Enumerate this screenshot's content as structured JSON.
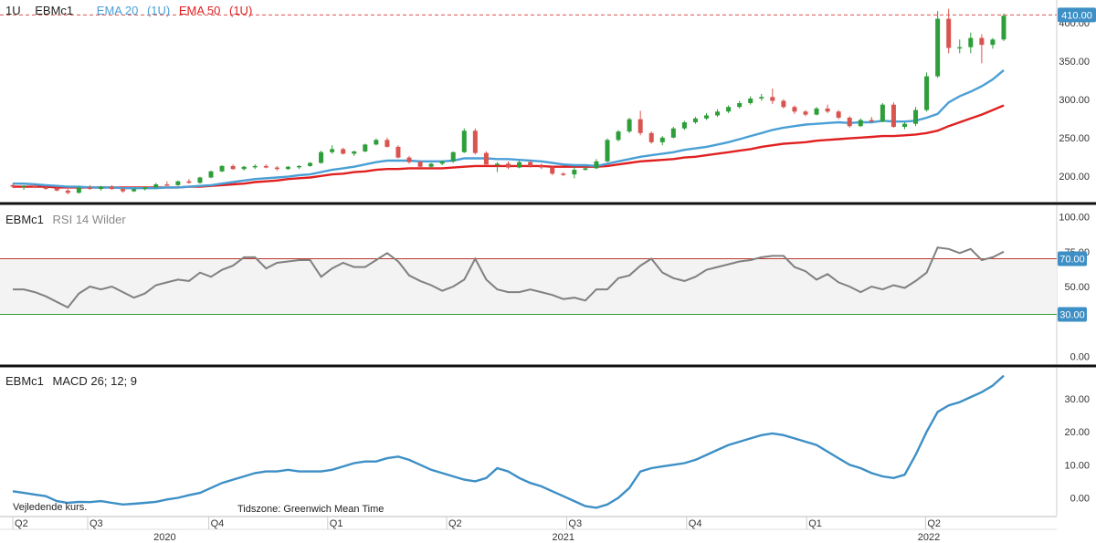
{
  "header": {
    "interval": "1U",
    "symbol": "EBMc1",
    "ema20_label": "EMA 20",
    "ema20_period": "(1U)",
    "ema50_label": "EMA 50",
    "ema50_period": "(1U)"
  },
  "rsi_panel": {
    "symbol": "EBMc1",
    "label": "RSI 14 Wilder"
  },
  "macd_panel": {
    "symbol": "EBMc1",
    "label": "MACD 26; 12; 9"
  },
  "footer": {
    "note": "Vejledende kurs.",
    "timezone": "Tidszone: Greenwich Mean Time"
  },
  "colors": {
    "up": "#2e9e3a",
    "down": "#d9534f",
    "ema20": "#4a9fd5",
    "ema50": "#e02020",
    "rsi_line": "#808080",
    "rsi_upper": "#c0392b",
    "rsi_lower": "#2ea043",
    "macd_line": "#3d8fc6",
    "price_tag": "#3d8fc6",
    "rsi_tag": "#3d8fc6"
  },
  "chart_data": [
    {
      "type": "candlestick",
      "title": "EBMc1",
      "ylim": [
        170,
        420
      ],
      "yticks": [
        200,
        250,
        300,
        350,
        400
      ],
      "ytick_labels": [
        "200.00",
        "250.00",
        "300.00",
        "350.00",
        "400.00"
      ],
      "last_price": 410,
      "last_price_label": "410.00",
      "xlim": [
        -0.5,
        90.5
      ],
      "candles": [
        {
          "o": 188,
          "h": 190,
          "l": 184,
          "c": 186
        },
        {
          "o": 186,
          "h": 188,
          "l": 182,
          "c": 187
        },
        {
          "o": 187,
          "h": 189,
          "l": 184,
          "c": 185
        },
        {
          "o": 185,
          "h": 187,
          "l": 182,
          "c": 184
        },
        {
          "o": 184,
          "h": 186,
          "l": 180,
          "c": 181
        },
        {
          "o": 181,
          "h": 183,
          "l": 176,
          "c": 178
        },
        {
          "o": 178,
          "h": 186,
          "l": 177,
          "c": 185
        },
        {
          "o": 185,
          "h": 188,
          "l": 182,
          "c": 183
        },
        {
          "o": 183,
          "h": 187,
          "l": 181,
          "c": 186
        },
        {
          "o": 186,
          "h": 188,
          "l": 182,
          "c": 183
        },
        {
          "o": 183,
          "h": 185,
          "l": 178,
          "c": 180
        },
        {
          "o": 180,
          "h": 184,
          "l": 179,
          "c": 183
        },
        {
          "o": 183,
          "h": 186,
          "l": 181,
          "c": 185
        },
        {
          "o": 185,
          "h": 191,
          "l": 184,
          "c": 189
        },
        {
          "o": 189,
          "h": 193,
          "l": 187,
          "c": 188
        },
        {
          "o": 188,
          "h": 194,
          "l": 187,
          "c": 193
        },
        {
          "o": 193,
          "h": 196,
          "l": 190,
          "c": 191
        },
        {
          "o": 191,
          "h": 199,
          "l": 190,
          "c": 198
        },
        {
          "o": 198,
          "h": 207,
          "l": 197,
          "c": 206
        },
        {
          "o": 206,
          "h": 214,
          "l": 205,
          "c": 213
        },
        {
          "o": 213,
          "h": 215,
          "l": 208,
          "c": 209
        },
        {
          "o": 209,
          "h": 213,
          "l": 207,
          "c": 212
        },
        {
          "o": 212,
          "h": 215,
          "l": 209,
          "c": 213
        },
        {
          "o": 213,
          "h": 215,
          "l": 210,
          "c": 211
        },
        {
          "o": 211,
          "h": 213,
          "l": 207,
          "c": 209
        },
        {
          "o": 209,
          "h": 213,
          "l": 208,
          "c": 212
        },
        {
          "o": 212,
          "h": 214,
          "l": 209,
          "c": 213
        },
        {
          "o": 213,
          "h": 218,
          "l": 212,
          "c": 217
        },
        {
          "o": 217,
          "h": 233,
          "l": 216,
          "c": 231
        },
        {
          "o": 231,
          "h": 240,
          "l": 229,
          "c": 235
        },
        {
          "o": 235,
          "h": 237,
          "l": 228,
          "c": 229
        },
        {
          "o": 229,
          "h": 233,
          "l": 226,
          "c": 232
        },
        {
          "o": 232,
          "h": 242,
          "l": 231,
          "c": 241
        },
        {
          "o": 241,
          "h": 249,
          "l": 240,
          "c": 247
        },
        {
          "o": 247,
          "h": 250,
          "l": 237,
          "c": 238
        },
        {
          "o": 238,
          "h": 240,
          "l": 223,
          "c": 224
        },
        {
          "o": 224,
          "h": 226,
          "l": 216,
          "c": 218
        },
        {
          "o": 218,
          "h": 220,
          "l": 210,
          "c": 212
        },
        {
          "o": 212,
          "h": 217,
          "l": 210,
          "c": 216
        },
        {
          "o": 216,
          "h": 220,
          "l": 214,
          "c": 219
        },
        {
          "o": 219,
          "h": 232,
          "l": 217,
          "c": 231
        },
        {
          "o": 231,
          "h": 262,
          "l": 230,
          "c": 259
        },
        {
          "o": 259,
          "h": 262,
          "l": 228,
          "c": 230
        },
        {
          "o": 230,
          "h": 232,
          "l": 214,
          "c": 215
        },
        {
          "o": 215,
          "h": 218,
          "l": 205,
          "c": 216
        },
        {
          "o": 216,
          "h": 219,
          "l": 209,
          "c": 211
        },
        {
          "o": 211,
          "h": 220,
          "l": 210,
          "c": 218
        },
        {
          "o": 218,
          "h": 220,
          "l": 211,
          "c": 213
        },
        {
          "o": 213,
          "h": 216,
          "l": 209,
          "c": 211
        },
        {
          "o": 211,
          "h": 213,
          "l": 201,
          "c": 203
        },
        {
          "o": 203,
          "h": 205,
          "l": 200,
          "c": 202
        },
        {
          "o": 202,
          "h": 212,
          "l": 197,
          "c": 208
        },
        {
          "o": 208,
          "h": 212,
          "l": 207,
          "c": 210
        },
        {
          "o": 210,
          "h": 222,
          "l": 209,
          "c": 219
        },
        {
          "o": 219,
          "h": 249,
          "l": 218,
          "c": 247
        },
        {
          "o": 247,
          "h": 260,
          "l": 245,
          "c": 258
        },
        {
          "o": 258,
          "h": 276,
          "l": 256,
          "c": 274
        },
        {
          "o": 274,
          "h": 285,
          "l": 253,
          "c": 256
        },
        {
          "o": 256,
          "h": 258,
          "l": 242,
          "c": 244
        },
        {
          "o": 244,
          "h": 252,
          "l": 240,
          "c": 250
        },
        {
          "o": 250,
          "h": 264,
          "l": 249,
          "c": 262
        },
        {
          "o": 262,
          "h": 272,
          "l": 260,
          "c": 270
        },
        {
          "o": 270,
          "h": 277,
          "l": 268,
          "c": 275
        },
        {
          "o": 275,
          "h": 282,
          "l": 273,
          "c": 279
        },
        {
          "o": 279,
          "h": 287,
          "l": 277,
          "c": 284
        },
        {
          "o": 284,
          "h": 292,
          "l": 282,
          "c": 290
        },
        {
          "o": 290,
          "h": 298,
          "l": 288,
          "c": 295
        },
        {
          "o": 295,
          "h": 304,
          "l": 293,
          "c": 301
        },
        {
          "o": 301,
          "h": 307,
          "l": 298,
          "c": 303
        },
        {
          "o": 303,
          "h": 314,
          "l": 294,
          "c": 298
        },
        {
          "o": 298,
          "h": 300,
          "l": 288,
          "c": 290
        },
        {
          "o": 290,
          "h": 292,
          "l": 281,
          "c": 284
        },
        {
          "o": 284,
          "h": 286,
          "l": 278,
          "c": 280
        },
        {
          "o": 280,
          "h": 290,
          "l": 279,
          "c": 288
        },
        {
          "o": 288,
          "h": 293,
          "l": 282,
          "c": 284
        },
        {
          "o": 284,
          "h": 286,
          "l": 274,
          "c": 276
        },
        {
          "o": 276,
          "h": 278,
          "l": 263,
          "c": 265
        },
        {
          "o": 265,
          "h": 275,
          "l": 264,
          "c": 273
        },
        {
          "o": 273,
          "h": 277,
          "l": 269,
          "c": 271
        },
        {
          "o": 271,
          "h": 295,
          "l": 270,
          "c": 293
        },
        {
          "o": 293,
          "h": 296,
          "l": 263,
          "c": 264
        },
        {
          "o": 264,
          "h": 270,
          "l": 261,
          "c": 268
        },
        {
          "o": 268,
          "h": 290,
          "l": 265,
          "c": 286
        },
        {
          "o": 286,
          "h": 335,
          "l": 284,
          "c": 330
        },
        {
          "o": 330,
          "h": 415,
          "l": 328,
          "c": 405
        },
        {
          "o": 405,
          "h": 418,
          "l": 360,
          "c": 367
        },
        {
          "o": 367,
          "h": 378,
          "l": 360,
          "c": 368
        },
        {
          "o": 368,
          "h": 387,
          "l": 360,
          "c": 380
        },
        {
          "o": 380,
          "h": 385,
          "l": 347,
          "c": 371
        },
        {
          "o": 371,
          "h": 380,
          "l": 366,
          "c": 378
        },
        {
          "o": 378,
          "h": 412,
          "l": 376,
          "c": 409
        }
      ],
      "ema20": [
        190,
        190,
        189,
        188,
        187,
        186,
        186,
        185,
        185,
        185,
        184,
        184,
        184,
        184,
        185,
        185,
        186,
        187,
        188,
        190,
        192,
        194,
        196,
        197,
        198,
        199,
        201,
        202,
        205,
        208,
        210,
        212,
        215,
        218,
        220,
        220,
        220,
        219,
        219,
        219,
        220,
        223,
        223,
        223,
        222,
        222,
        221,
        220,
        219,
        217,
        215,
        214,
        214,
        213,
        216,
        219,
        222,
        225,
        227,
        229,
        231,
        234,
        236,
        238,
        241,
        244,
        248,
        252,
        256,
        260,
        263,
        265,
        267,
        268,
        269,
        270,
        269,
        270,
        270,
        272,
        271,
        271,
        272,
        276,
        281,
        296,
        304,
        310,
        317,
        326,
        338
      ],
      "ema50": [
        186,
        186,
        186,
        186,
        185,
        185,
        185,
        185,
        185,
        185,
        185,
        185,
        185,
        185,
        185,
        185,
        186,
        186,
        187,
        188,
        189,
        190,
        192,
        193,
        194,
        196,
        197,
        198,
        200,
        202,
        203,
        205,
        206,
        208,
        209,
        209,
        210,
        210,
        210,
        210,
        211,
        212,
        213,
        213,
        213,
        213,
        213,
        213,
        213,
        212,
        212,
        212,
        212,
        212,
        213,
        215,
        217,
        219,
        220,
        221,
        222,
        224,
        225,
        227,
        229,
        231,
        233,
        235,
        238,
        240,
        242,
        243,
        244,
        246,
        247,
        248,
        249,
        250,
        251,
        252,
        252,
        253,
        254,
        256,
        259,
        265,
        270,
        275,
        280,
        286,
        292
      ]
    },
    {
      "type": "line",
      "title": "RSI 14 Wilder",
      "ylim": [
        -5,
        105
      ],
      "yticks": [
        0,
        25,
        50,
        75,
        100
      ],
      "ytick_labels": [
        "0.00",
        "",
        "50.00",
        "75.00",
        "100.00"
      ],
      "upper_band": 70,
      "upper_band_label": "70.00",
      "lower_band": 30,
      "lower_band_label": "30.00",
      "xlim": [
        -0.5,
        90.5
      ],
      "values": [
        48,
        48,
        46,
        43,
        39,
        35,
        45,
        50,
        48,
        50,
        46,
        42,
        45,
        51,
        53,
        55,
        54,
        60,
        57,
        62,
        65,
        71,
        71,
        63,
        67,
        68,
        69,
        69,
        57,
        63,
        67,
        64,
        64,
        69,
        74,
        68,
        58,
        54,
        51,
        47,
        50,
        55,
        70,
        55,
        48,
        46,
        46,
        48,
        46,
        44,
        41,
        42,
        40,
        48,
        48,
        56,
        58,
        65,
        70,
        60,
        56,
        54,
        57,
        62,
        64,
        66,
        68,
        69,
        71,
        72,
        72,
        64,
        61,
        55,
        59,
        53,
        50,
        46,
        50,
        48,
        51,
        49,
        54,
        60,
        78,
        77,
        74,
        77,
        69,
        71,
        75
      ]
    },
    {
      "type": "line",
      "title": "MACD 26; 12; 9",
      "ylim": [
        -4,
        38
      ],
      "yticks": [
        0,
        10,
        20,
        30
      ],
      "ytick_labels": [
        "0.00",
        "10.00",
        "20.00",
        "30.00"
      ],
      "xlim": [
        -0.5,
        90.5
      ],
      "values": [
        2,
        1.5,
        1,
        0.5,
        -1,
        -1.5,
        -1.2,
        -1.3,
        -1,
        -1.5,
        -2,
        -1.8,
        -1.5,
        -1.2,
        -0.5,
        0,
        0.8,
        1.5,
        3,
        4.5,
        5.5,
        6.5,
        7.5,
        8,
        8,
        8.5,
        8,
        8,
        8,
        8.5,
        9.5,
        10.5,
        11,
        11,
        12,
        12.5,
        11.5,
        10,
        8.5,
        7.5,
        6.5,
        5.5,
        5,
        6,
        9,
        8,
        6,
        4.5,
        3.5,
        2,
        0.5,
        -1,
        -2.5,
        -3,
        -2,
        0,
        3,
        8,
        9,
        9.5,
        10,
        10.5,
        11.5,
        13,
        14.5,
        16,
        17,
        18,
        19,
        19.5,
        19,
        18,
        17,
        16,
        14,
        12,
        10,
        9,
        7.5,
        6.5,
        6,
        7,
        13,
        20,
        26,
        28,
        29,
        30.5,
        32,
        34,
        37
      ]
    }
  ],
  "x_axis": {
    "quarter_labels": [
      {
        "label": "Q2",
        "idx": 0
      },
      {
        "label": "Q3",
        "idx": 6.8
      },
      {
        "label": "Q4",
        "idx": 17.8
      },
      {
        "label": "Q1",
        "idx": 28.6
      },
      {
        "label": "Q2",
        "idx": 39.4
      },
      {
        "label": "Q3",
        "idx": 50.3
      },
      {
        "label": "Q4",
        "idx": 61.2
      },
      {
        "label": "Q1",
        "idx": 72.1
      },
      {
        "label": "Q2",
        "idx": 82.9
      }
    ],
    "year_labels": [
      {
        "label": "2020",
        "idx": 13.8
      },
      {
        "label": "2021",
        "idx": 50.0
      },
      {
        "label": "2022",
        "idx": 83.2
      }
    ]
  }
}
